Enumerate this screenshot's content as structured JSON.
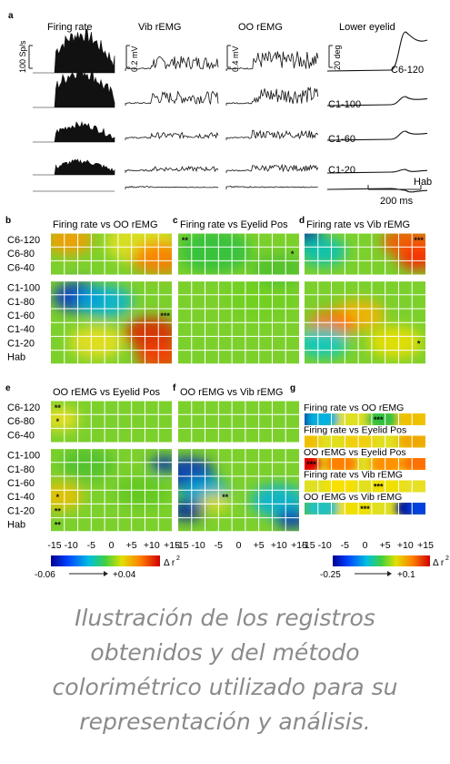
{
  "panelA": {
    "letter": "a",
    "columns": [
      "Firing rate",
      "Vib rEMG",
      "OO rEMG",
      "Lower eyelid"
    ],
    "scale_labels": [
      "100 Sp/s",
      "0.2 mV",
      "0.4 mV",
      "20 deg"
    ],
    "row_labels": [
      "C6-120",
      "C1-100",
      "C1-60",
      "C1-20",
      "Hab"
    ],
    "time_bar": "200 ms"
  },
  "heatmaps": [
    {
      "letter": "b",
      "title": "Firing rate vs OO rEMG",
      "row_labels": [
        "C6-120",
        "C6-80",
        "C6-40",
        "C1-100",
        "C1-80",
        "C1-60",
        "C1-40",
        "C1-20",
        "Hab"
      ],
      "stars": [
        {
          "r": 5,
          "c": 8,
          "t": "***"
        }
      ]
    },
    {
      "letter": "c",
      "title": "Firing rate vs Eyelid Pos",
      "row_labels": [],
      "stars": [
        {
          "r": 0,
          "c": 0,
          "t": "**"
        },
        {
          "r": 1,
          "c": 8,
          "t": "*"
        }
      ]
    },
    {
      "letter": "d",
      "title": "Firing rate vs Vib rEMG",
      "row_labels": [],
      "stars": [
        {
          "r": 0,
          "c": 8,
          "t": "***"
        },
        {
          "r": 7,
          "c": 8,
          "t": "*"
        }
      ]
    },
    {
      "letter": "e",
      "title": "OO rEMG vs Eyelid Pos",
      "row_labels": [
        "C6-120",
        "C6-80",
        "C6-40",
        "C1-100",
        "C1-80",
        "C1-60",
        "C1-40",
        "C1-20",
        "Hab"
      ],
      "stars": [
        {
          "r": 0,
          "c": 0,
          "t": "**"
        },
        {
          "r": 1,
          "c": 0,
          "t": "*"
        },
        {
          "r": 6,
          "c": 0,
          "t": "*"
        },
        {
          "r": 7,
          "c": 0,
          "t": "**"
        },
        {
          "r": 8,
          "c": 0,
          "t": "**"
        }
      ]
    },
    {
      "letter": "f",
      "title": "OO rEMG vs Vib rEMG",
      "row_labels": [],
      "stars": [
        {
          "r": 6,
          "c": 3,
          "t": "**"
        }
      ]
    }
  ],
  "x_ticks": [
    "-15",
    "-10",
    "-5",
    "0",
    "+5",
    "+10",
    "+15"
  ],
  "panelG": {
    "letter": "g",
    "strips": [
      {
        "title": "Firing rate vs OO rEMG",
        "star": "***",
        "star_col": 5
      },
      {
        "title": "Firing rate vs Eyelid Pos",
        "star": "",
        "star_col": 0
      },
      {
        "title": "OO rEMG vs Eyelid Pos",
        "star": "***",
        "star_col": 0
      },
      {
        "title": "Firing rate vs Vib rEMG",
        "star": "***",
        "star_col": 5
      },
      {
        "title": "OO rEMG vs Vib rEMG",
        "star": "***",
        "star_col": 4
      }
    ]
  },
  "colorbar_left": {
    "min": "-0.06",
    "max": "+0.04",
    "label": "Δ r"
  },
  "colorbar_right": {
    "min": "-0.25",
    "max": "+0.1",
    "label": "Δ r"
  },
  "caption_lines": [
    "Ilustración de los registros",
    "obtenidos y del método",
    "colorimétrico utilizado para su",
    "representación y análisis."
  ]
}
